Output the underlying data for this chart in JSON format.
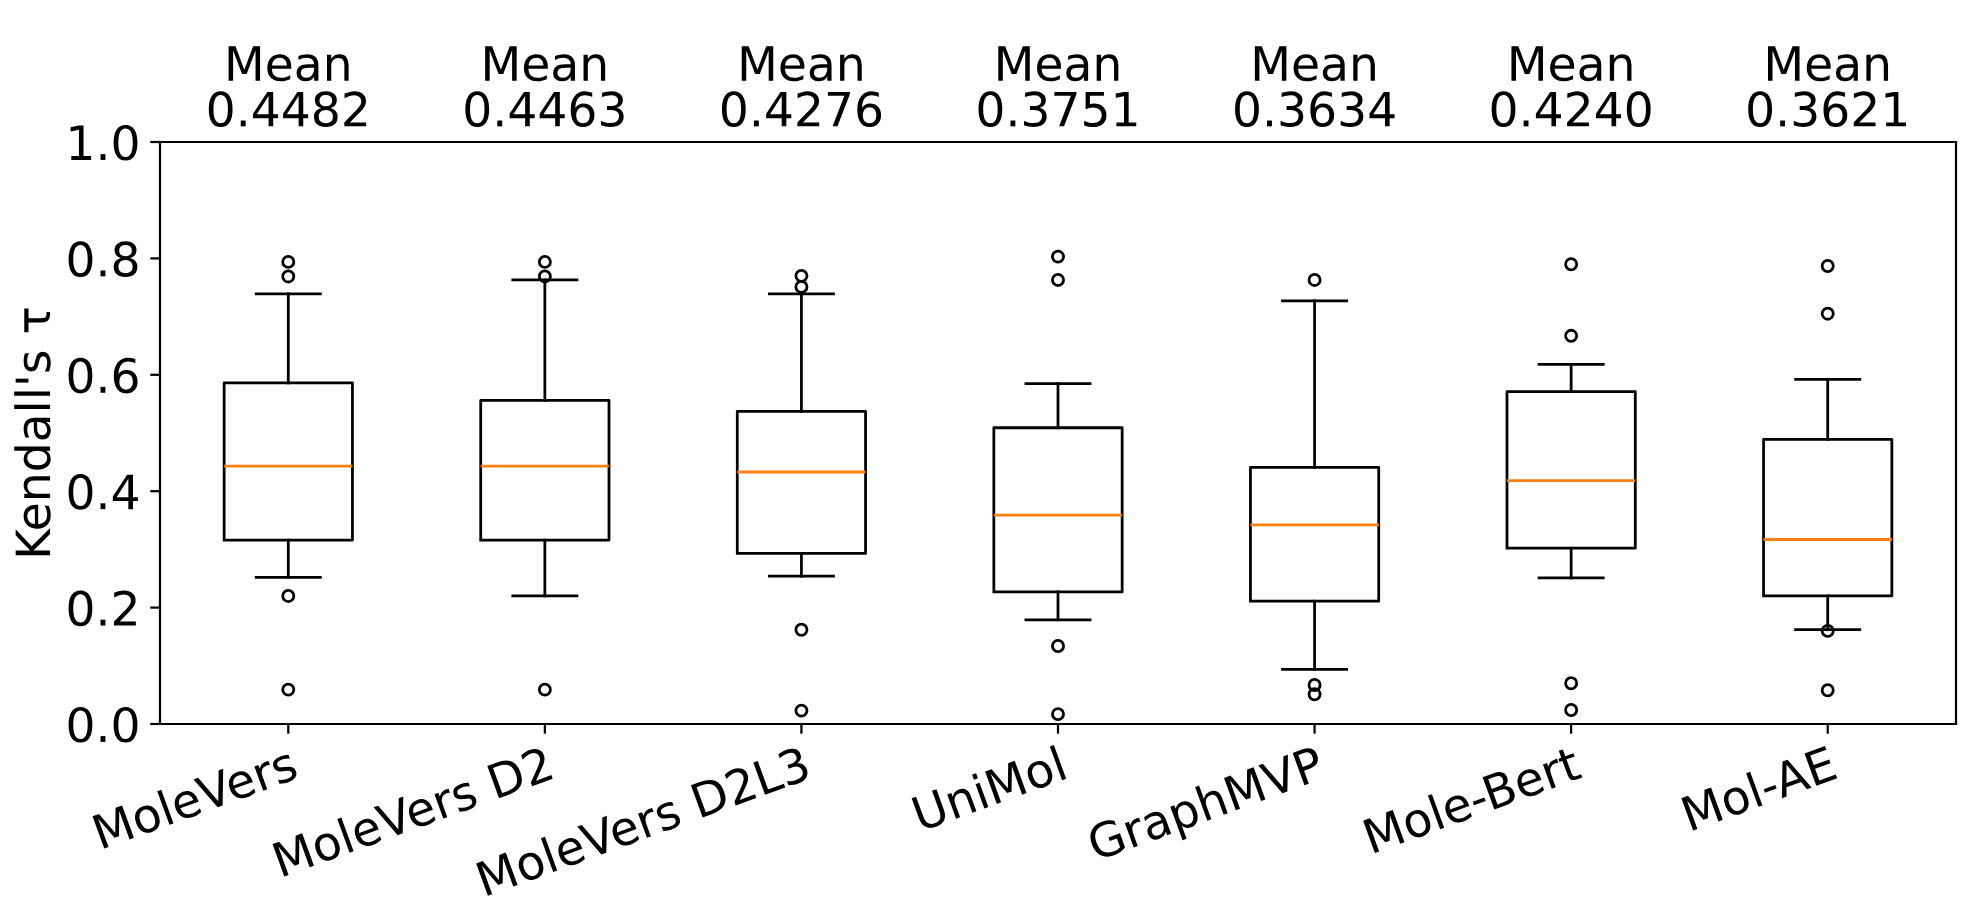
{
  "chart_data": {
    "type": "box",
    "ylabel": "Kendall's τ",
    "categories": [
      "MoleVers",
      "MoleVers D2",
      "MoleVers D2L3",
      "UniMol",
      "GraphMVP",
      "Mole-Bert",
      "Mol-AE"
    ],
    "annotations": [
      "Mean\n0.4482",
      "Mean\n0.4463",
      "Mean\n0.4276",
      "Mean\n0.3751",
      "Mean\n0.3634",
      "Mean\n0.4240",
      "Mean\n0.3621"
    ],
    "boxes": [
      {
        "low": 0.252,
        "q1": 0.316,
        "median": 0.443,
        "q3": 0.586,
        "high": 0.739,
        "outliers": [
          0.794,
          0.769,
          0.22,
          0.059
        ]
      },
      {
        "low": 0.22,
        "q1": 0.316,
        "median": 0.443,
        "q3": 0.556,
        "high": 0.763,
        "outliers": [
          0.794,
          0.769,
          0.059
        ]
      },
      {
        "low": 0.254,
        "q1": 0.293,
        "median": 0.433,
        "q3": 0.537,
        "high": 0.739,
        "outliers": [
          0.77,
          0.751,
          0.162,
          0.023
        ]
      },
      {
        "low": 0.179,
        "q1": 0.227,
        "median": 0.359,
        "q3": 0.509,
        "high": 0.585,
        "outliers": [
          0.803,
          0.763,
          0.134,
          0.017
        ]
      },
      {
        "low": 0.094,
        "q1": 0.211,
        "median": 0.342,
        "q3": 0.441,
        "high": 0.727,
        "outliers": [
          0.763,
          0.067,
          0.051
        ]
      },
      {
        "low": 0.251,
        "q1": 0.302,
        "median": 0.418,
        "q3": 0.571,
        "high": 0.618,
        "outliers": [
          0.79,
          0.667,
          0.07,
          0.024
        ]
      },
      {
        "low": 0.162,
        "q1": 0.22,
        "median": 0.317,
        "q3": 0.489,
        "high": 0.592,
        "outliers": [
          0.787,
          0.705,
          0.16,
          0.058
        ]
      }
    ],
    "color": "#000000",
    "ylim": [
      0.0,
      1.0
    ],
    "yticks": [
      {
        "value": 0,
        "label": "0.0"
      },
      0.2,
      0.4,
      0.6,
      0.8,
      {
        "value": 1,
        "label": "1.0"
      }
    ],
    "grid": false
  }
}
